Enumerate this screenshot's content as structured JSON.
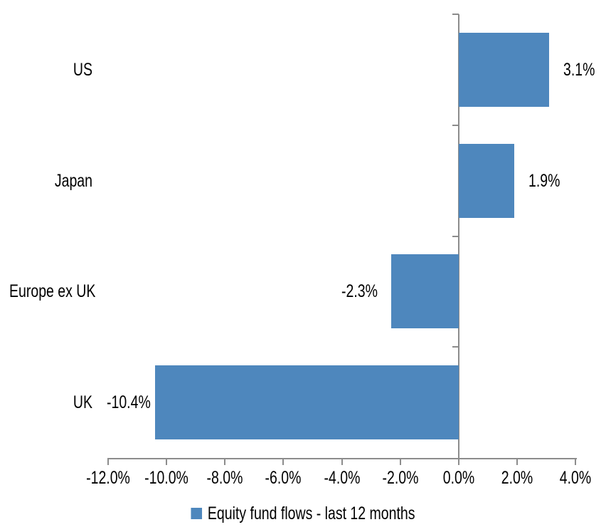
{
  "chart_data": {
    "type": "bar",
    "orientation": "horizontal",
    "categories": [
      "US",
      "Japan",
      "Europe ex UK",
      "UK"
    ],
    "values": [
      3.1,
      1.9,
      -2.3,
      -10.4
    ],
    "data_labels": [
      "3.1%",
      "1.9%",
      "-2.3%",
      "-10.4%"
    ],
    "series": [
      {
        "name": "Equity fund flows - last 12 months",
        "values": [
          3.1,
          1.9,
          -2.3,
          -10.4
        ]
      }
    ],
    "title": "",
    "xlabel": "",
    "ylabel": "",
    "xlim": [
      -12,
      4
    ],
    "x_tick_values": [
      -12,
      -10,
      -8,
      -6,
      -4,
      -2,
      0,
      2,
      4
    ],
    "x_tick_labels": [
      "-12.0%",
      "-10.0%",
      "-8.0%",
      "-6.0%",
      "-4.0%",
      "-2.0%",
      "0.0%",
      "2.0%",
      "4.0%"
    ],
    "grid": false,
    "legend_position": "bottom",
    "bar_color": "#4e87bd",
    "axis_color": "#8c8c8c",
    "text_color": "#000000"
  },
  "legend": {
    "label": "Equity fund flows - last 12 months",
    "swatch_color": "#4e87bd"
  }
}
